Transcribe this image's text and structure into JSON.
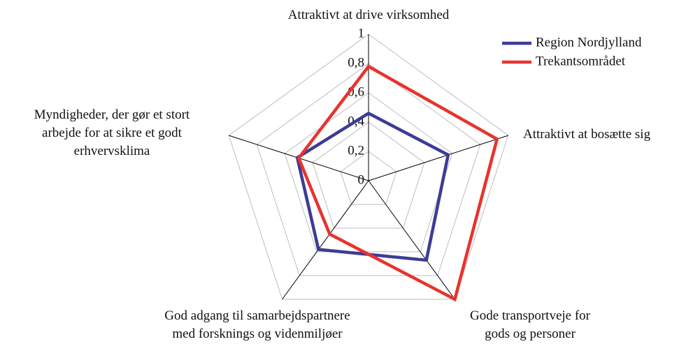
{
  "chart_data": {
    "type": "radar",
    "categories": [
      "Attraktivt at drive virksomhed",
      "Attraktivt at bosætte sig",
      "Gode transportveje for\ngods og personer",
      "God adgang til samarbejdspartnere\nmed forsknings og videnmiljøer",
      "Myndigheder, der gør et stort\narbejde for at sikre et godt\nerhvervsklima"
    ],
    "series": [
      {
        "name": "Region Nordjylland",
        "color": "#3c3c96",
        "values": [
          0.46,
          0.57,
          0.67,
          0.58,
          0.51
        ]
      },
      {
        "name": "Trekantsområdet",
        "color": "#e8332e",
        "values": [
          0.78,
          0.92,
          1.0,
          0.45,
          0.5
        ]
      }
    ],
    "ylim": [
      0,
      1
    ],
    "yticks": [
      0,
      {
        "value": 0.2,
        "label": "0,2"
      },
      {
        "value": 0.4,
        "label": "0,4"
      },
      {
        "value": 0.6,
        "label": "0,6"
      },
      {
        "value": 0.8,
        "label": "0,8"
      },
      1
    ],
    "grid": true,
    "legend": "top-right"
  }
}
